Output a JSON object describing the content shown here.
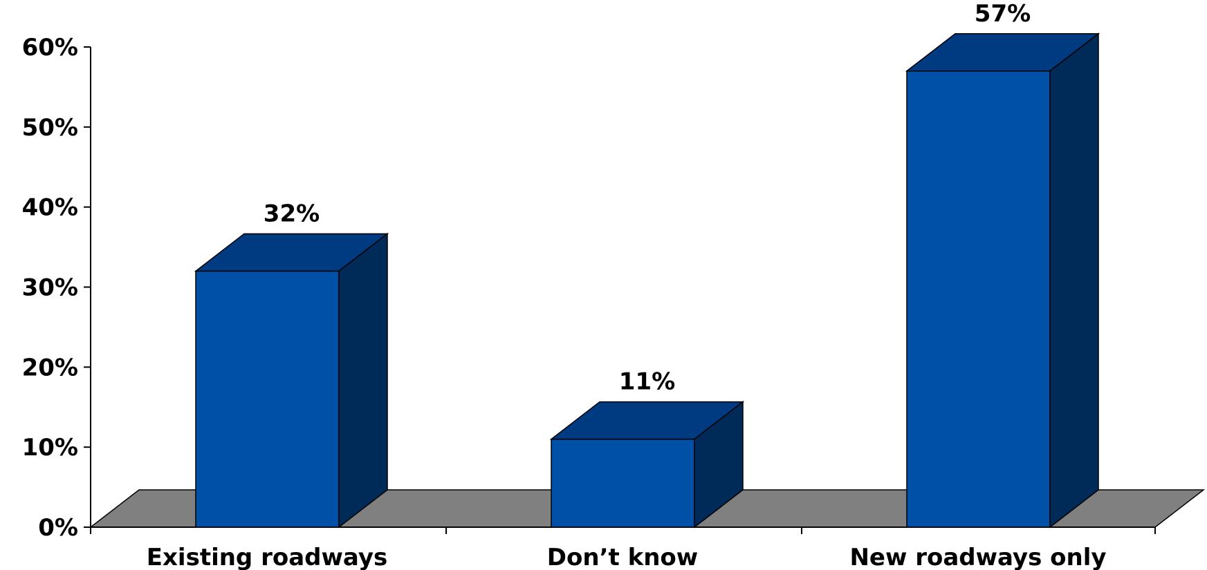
{
  "chart_data": {
    "type": "bar",
    "categories": [
      "Existing roadways",
      "Don’t know",
      "New roadways only"
    ],
    "values": [
      32,
      11,
      57
    ],
    "value_labels": [
      "32%",
      "11%",
      "57%"
    ],
    "y_ticks": [
      0,
      10,
      20,
      30,
      40,
      50,
      60
    ],
    "y_tick_labels": [
      "0%",
      "10%",
      "20%",
      "30%",
      "40%",
      "50%",
      "60%"
    ],
    "ylim": [
      0,
      60
    ],
    "title": "",
    "xlabel": "",
    "ylabel": "",
    "grid": false,
    "style": "3d",
    "colors": {
      "bar_front": "#0050a8",
      "bar_top": "#003a80",
      "bar_side": "#002a58",
      "floor": "#808080",
      "axis": "#000000"
    }
  }
}
